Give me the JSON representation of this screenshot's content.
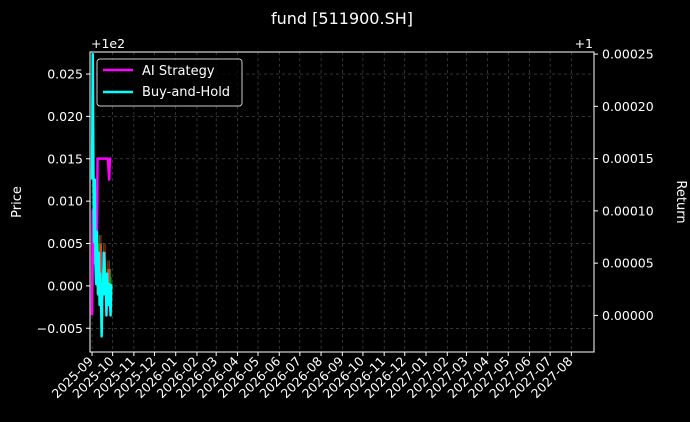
{
  "chart_data": {
    "type": "line",
    "title": "fund [511900.SH]",
    "ylabel_left": "Price",
    "ylabel_right": "Return",
    "left_offset_label": "+1e2",
    "right_offset_label": "+1",
    "left_ylim": [
      -0.0078,
      0.0276
    ],
    "right_ylim": [
      -3.5e-05,
      0.000252
    ],
    "left_yticks": [
      -0.005,
      0.0,
      0.005,
      0.01,
      0.015,
      0.02,
      0.025
    ],
    "left_ytick_labels": [
      "−0.005",
      "0.000",
      "0.005",
      "0.010",
      "0.015",
      "0.020",
      "0.025"
    ],
    "right_yticks": [
      0.0,
      5e-05,
      0.0001,
      0.00015,
      0.0002,
      0.00025
    ],
    "right_ytick_labels": [
      "0.00000",
      "0.00005",
      "0.00010",
      "0.00015",
      "0.00020",
      "0.00025"
    ],
    "xlim": [
      "2025-08-29",
      "2027-09-03"
    ],
    "xtick_labels": [
      "2025-09",
      "2025-10",
      "2025-11",
      "2025-12",
      "2026-01",
      "2026-02",
      "2026-03",
      "2026-04",
      "2026-05",
      "2026-06",
      "2026-07",
      "2026-08",
      "2026-09",
      "2026-10",
      "2026-11",
      "2026-12",
      "2027-01",
      "2027-02",
      "2027-03",
      "2027-04",
      "2027-05",
      "2027-06",
      "2027-07",
      "2027-08"
    ],
    "xticks": [
      "2025-09-01",
      "2025-10-01",
      "2025-11-01",
      "2025-12-01",
      "2026-01-01",
      "2026-02-01",
      "2026-03-01",
      "2026-04-01",
      "2026-05-01",
      "2026-06-01",
      "2026-07-01",
      "2026-08-01",
      "2026-09-01",
      "2026-10-01",
      "2026-11-01",
      "2026-12-01",
      "2027-01-01",
      "2027-02-01",
      "2027-03-01",
      "2027-04-01",
      "2027-05-01",
      "2027-06-01",
      "2027-07-01",
      "2027-08-01"
    ],
    "grid": true,
    "legend_position": "top-left",
    "series": [
      {
        "name": "AI Strategy",
        "color": "#ff00ff",
        "axis": "right",
        "x": [
          "2025-09-01",
          "2025-09-02",
          "2025-09-03",
          "2025-09-04",
          "2025-09-05",
          "2025-09-06",
          "2025-09-07",
          "2025-09-08",
          "2025-09-09",
          "2025-09-10",
          "2025-09-11",
          "2025-09-12",
          "2025-09-13",
          "2025-09-14",
          "2025-09-15",
          "2025-09-16",
          "2025-09-17",
          "2025-09-18",
          "2025-09-19",
          "2025-09-20",
          "2025-09-21",
          "2025-09-22",
          "2025-09-23",
          "2025-09-24",
          "2025-09-25",
          "2025-09-26",
          "2025-09-27",
          "2025-09-28",
          "2025-09-29"
        ],
        "values": [
          0.0,
          0.0001,
          0.0001,
          5e-05,
          0.0001,
          8e-05,
          0.00012,
          6e-05,
          0.00015,
          0.00015,
          0.00015,
          0.00015,
          0.00015,
          0.00015,
          0.00015,
          0.00015,
          0.00015,
          0.00015,
          0.00015,
          0.00015,
          0.00015,
          0.00015,
          0.00015,
          0.00015,
          0.00014,
          0.00013,
          0.00015,
          0.00015,
          0.00015
        ]
      },
      {
        "name": "Buy-and-Hold",
        "color": "#00ffff",
        "axis": "right",
        "x": [
          "2025-09-01",
          "2025-09-02",
          "2025-09-03",
          "2025-09-04",
          "2025-09-05",
          "2025-09-06",
          "2025-09-07",
          "2025-09-08",
          "2025-09-09",
          "2025-09-10",
          "2025-09-11",
          "2025-09-12",
          "2025-09-13",
          "2025-09-14",
          "2025-09-15",
          "2025-09-16",
          "2025-09-17",
          "2025-09-18",
          "2025-09-19",
          "2025-09-20",
          "2025-09-21",
          "2025-09-22",
          "2025-09-23",
          "2025-09-24",
          "2025-09-25",
          "2025-09-26",
          "2025-09-27",
          "2025-09-28",
          "2025-09-29"
        ],
        "values": [
          0.00013,
          0.00025,
          0.00014,
          7e-05,
          0.00013,
          5e-05,
          3e-05,
          8e-05,
          4e-05,
          2e-05,
          6e-05,
          1e-05,
          4e-05,
          2e-05,
          -2e-05,
          3e-05,
          2e-05,
          6e-05,
          5e-05,
          2e-05,
          3e-05,
          0.0,
          4e-05,
          1e-05,
          1e-05,
          3e-05,
          2e-05,
          0.0,
          3e-05
        ]
      }
    ],
    "price_bars": {
      "axis": "left",
      "up_color": "#00aa00",
      "down_color": "#ff3333",
      "x": [
        "2025-09-02",
        "2025-09-04",
        "2025-09-06",
        "2025-09-08",
        "2025-09-10",
        "2025-09-12",
        "2025-09-14",
        "2025-09-16",
        "2025-09-18",
        "2025-09-20",
        "2025-09-22",
        "2025-09-24",
        "2025-09-26",
        "2025-09-28"
      ],
      "open": [
        0.0,
        0.004,
        0.01,
        0.003,
        0.0,
        0.002,
        0.005,
        0.0,
        0.001,
        0.004,
        0.0,
        -0.001,
        0.002,
        0.0
      ],
      "close": [
        0.004,
        0.01,
        0.003,
        0.0,
        0.002,
        0.005,
        0.0,
        0.001,
        0.004,
        0.0,
        -0.001,
        0.002,
        0.0,
        0.001
      ],
      "high": [
        0.006,
        0.012,
        0.011,
        0.004,
        0.003,
        0.006,
        0.006,
        0.002,
        0.005,
        0.005,
        0.001,
        0.003,
        0.003,
        0.002
      ],
      "low": [
        -0.001,
        0.003,
        0.002,
        -0.001,
        -0.001,
        0.001,
        -0.001,
        -0.001,
        0.0,
        -0.001,
        -0.002,
        -0.002,
        -0.001,
        -0.001
      ]
    }
  }
}
